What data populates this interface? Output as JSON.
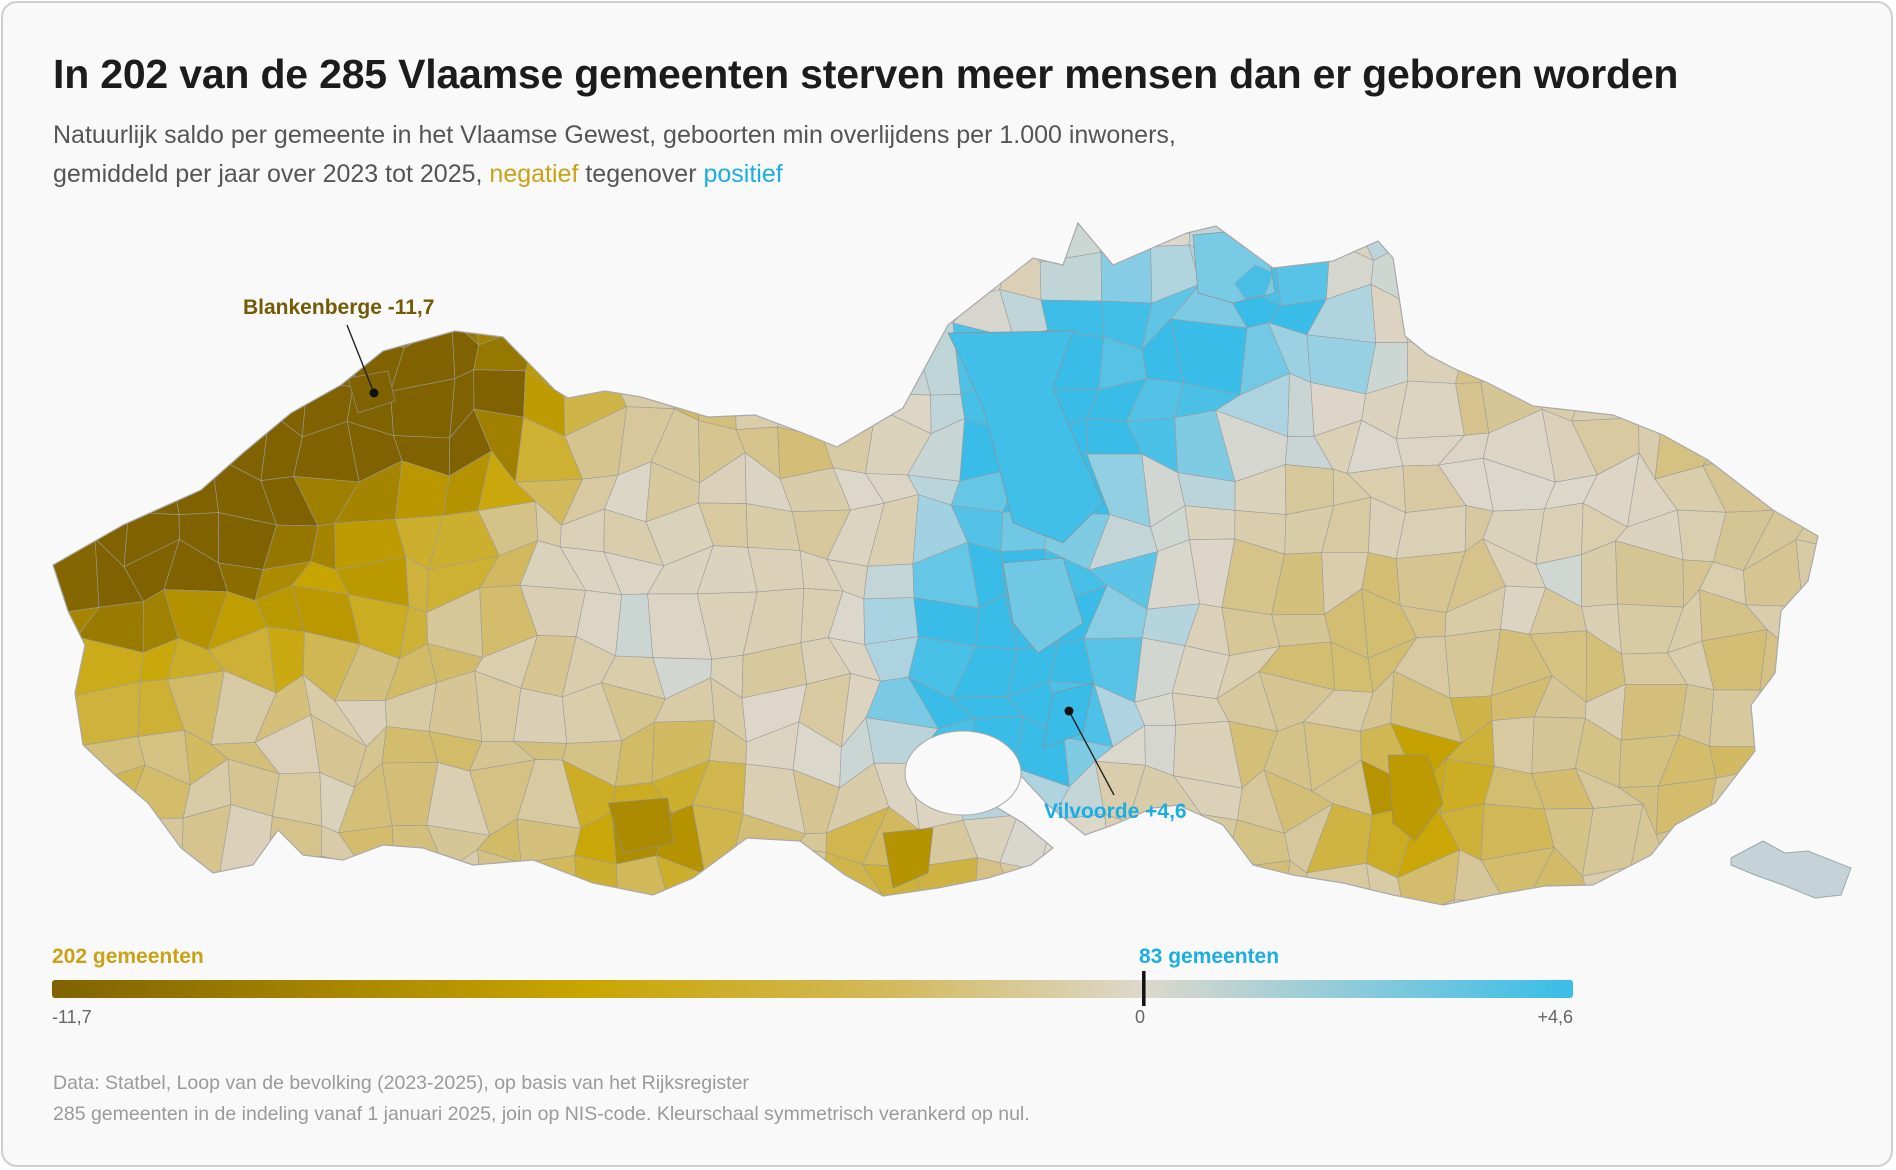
{
  "title": "In 202 van de 285 Vlaamse gemeenten sterven meer mensen dan er geboren worden",
  "subtitle": {
    "line1": "Natuurlijk saldo per gemeente in het Vlaamse Gewest, geboorten min overlijdens per 1.000 inwoners,",
    "line2_start": "gemiddeld per jaar over 2023 tot 2025,",
    "negative_word": "negatief",
    "middle_word": "tegenover",
    "positive_word": "positief"
  },
  "colors": {
    "negative_min": "#806300",
    "negative_mid": "#c9a500",
    "negative_light": "#d6c491",
    "neutral": "#ddd7cb",
    "positive_light": "#a9d3e2",
    "positive_max": "#39bde8",
    "negative_text": "#c9a215",
    "positive_text": "#1aaee3",
    "dark_annotation": "#735a05"
  },
  "chart_data": {
    "type": "choropleth",
    "region": "Vlaamse Gewest",
    "unit": "geboorten min overlijdens per 1.000 inwoners",
    "municipalities_total": 285,
    "municipalities_negative": 202,
    "municipalities_positive": 83,
    "scale": {
      "min": -11.7,
      "zero": 0,
      "max": 4.6
    },
    "annotations": [
      {
        "name": "Blankenberge",
        "value": -11.7,
        "label": "Blankenberge -11,7"
      },
      {
        "name": "Vilvoorde",
        "value": 4.6,
        "label": "Vilvoorde +4,6"
      }
    ]
  },
  "legend": {
    "negative_count_label": "202 gemeenten",
    "positive_count_label": "83 gemeenten",
    "min_label": "-11,7",
    "zero_label": "0",
    "max_label": "+4,6"
  },
  "footer": {
    "source": "Data: Statbel, Loop van de bevolking (2023-2025), op basis van het Rijksregister",
    "note": "285 gemeenten in de indeling vanaf 1 januari 2025, join op NIS-code. Kleurschaal symmetrisch verankerd op nul."
  }
}
